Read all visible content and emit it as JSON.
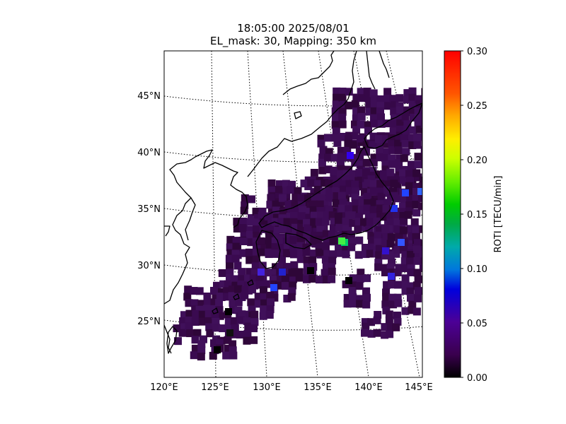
{
  "title": {
    "line1": "18:05:00 2025/08/01",
    "line2": "EL_mask: 30, Mapping: 350 km"
  },
  "map": {
    "lat_ticks": [
      "25°N",
      "30°N",
      "35°N",
      "40°N",
      "45°N"
    ],
    "lon_ticks": [
      "120°E",
      "125°E",
      "130°E",
      "135°E",
      "140°E",
      "145°E"
    ],
    "graticule": "dotted",
    "coastlines": true,
    "region": "East Asia / Japan"
  },
  "colorbar": {
    "label": "ROTI [TECU/min]",
    "ticks": [
      "0.00",
      "0.05",
      "0.10",
      "0.15",
      "0.20",
      "0.25",
      "0.30"
    ],
    "range": [
      0,
      0.3
    ],
    "colormap": "nipy_spectral",
    "colors": {
      "v0": "#000000",
      "v02": "#3a004e",
      "v05": "#4c0096",
      "v08": "#0000dd",
      "v10": "#0099dd",
      "v13": "#00aa88",
      "v15": "#00cc00",
      "v18": "#88ff00",
      "v20": "#ddff00",
      "v23": "#ffcc00",
      "v25": "#ff6600",
      "v30": "#ff0000"
    }
  },
  "data_summary": {
    "typical_roti": 0.02,
    "max_roti_visible": 0.14,
    "dominant_color": "#3a0a50"
  }
}
